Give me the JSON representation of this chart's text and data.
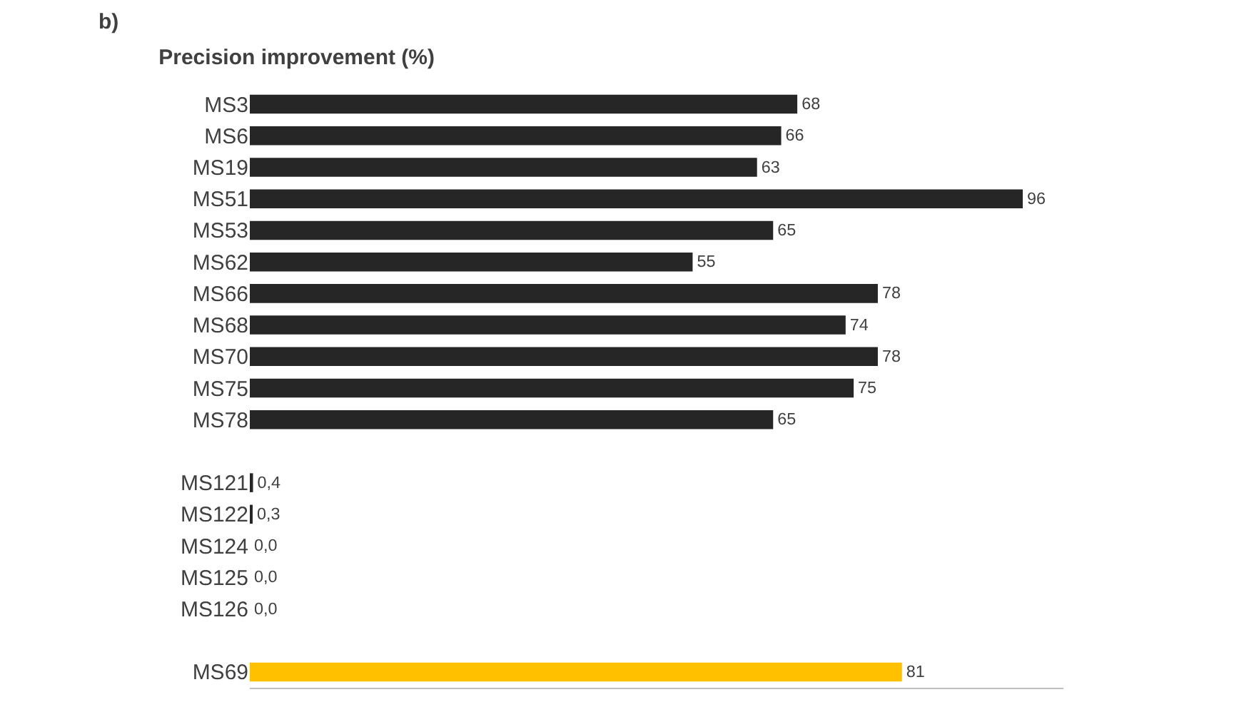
{
  "chart_data": {
    "type": "bar",
    "orientation": "horizontal",
    "title": "Precision improvement (%)",
    "annotations": [
      "b)"
    ],
    "categories": [
      "MS3",
      "MS6",
      "MS19",
      "MS51",
      "MS53",
      "MS62",
      "MS66",
      "MS68",
      "MS70",
      "MS75",
      "MS78",
      null,
      "MS121",
      "MS122",
      "MS124",
      "MS125",
      "MS126",
      null,
      "MS69"
    ],
    "values": [
      68,
      66,
      63,
      96,
      65,
      55,
      78,
      74,
      78,
      75,
      65,
      null,
      0.4,
      0.3,
      0.0,
      0.0,
      0.0,
      null,
      81
    ],
    "value_labels": [
      "68",
      "66",
      "63",
      "96",
      "65",
      "55",
      "78",
      "74",
      "78",
      "75",
      "65",
      null,
      "0,4",
      "0,3",
      "0,0",
      "0,0",
      "0,0",
      null,
      "81"
    ],
    "colors": [
      "#262626",
      "#262626",
      "#262626",
      "#262626",
      "#262626",
      "#262626",
      "#262626",
      "#262626",
      "#262626",
      "#262626",
      "#262626",
      "#262626",
      "#262626",
      "#262626",
      "#262626",
      "#262626",
      "#262626",
      "#262626",
      "#ffc000"
    ],
    "tick_labels": "y",
    "grid": false,
    "legend": false
  }
}
